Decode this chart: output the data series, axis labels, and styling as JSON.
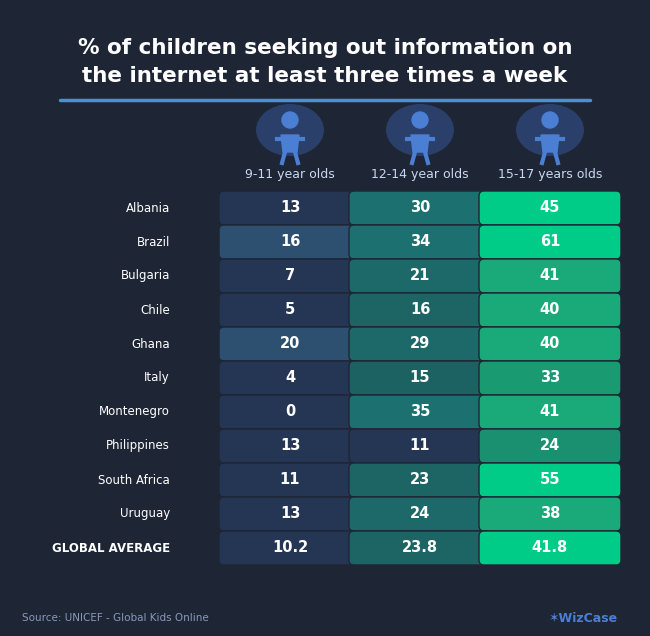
{
  "title": "% of children seeking out information on\nthe internet at least three times a week",
  "bg_color": "#1e2535",
  "col_headers": [
    "9-11 year olds",
    "12-14 year olds",
    "15-17 years olds"
  ],
  "countries": [
    "Albania",
    "Brazil",
    "Bulgaria",
    "Chile",
    "Ghana",
    "Italy",
    "Montenegro",
    "Philippines",
    "South Africa",
    "Uruguay",
    "GLOBAL AVERAGE"
  ],
  "col1": [
    "13",
    "16",
    "7",
    "5",
    "20",
    "4",
    "0",
    "13",
    "11",
    "13",
    "10.2"
  ],
  "col2": [
    "30",
    "34",
    "21",
    "16",
    "29",
    "15",
    "35",
    "11",
    "23",
    "24",
    "23.8"
  ],
  "col3": [
    "45",
    "61",
    "41",
    "40",
    "40",
    "33",
    "41",
    "24",
    "55",
    "38",
    "41.8"
  ],
  "col1_colors": [
    "#253655",
    "#2e5070",
    "#253655",
    "#253655",
    "#2e5070",
    "#253655",
    "#253655",
    "#253655",
    "#253655",
    "#253655",
    "#253655"
  ],
  "col2_colors": [
    "#1d7070",
    "#1d7070",
    "#1d6868",
    "#1d6565",
    "#1d6868",
    "#1d6262",
    "#1d7070",
    "#253655",
    "#1d6565",
    "#1d6868",
    "#1d6565"
  ],
  "col3_colors": [
    "#00cc88",
    "#00cc88",
    "#1aaa7a",
    "#1aaa7a",
    "#1aaa7a",
    "#1a9a70",
    "#1aaa7a",
    "#1a9070",
    "#00cc88",
    "#1aaa7a",
    "#00cc88"
  ],
  "source_text": "Source: UNICEF - Global Kids Online",
  "accent_line_color": "#4a90d9",
  "title_color": "#ffffff",
  "cell_text_color": "#ffffff",
  "country_text_color": "#ffffff",
  "header_text_color": "#c8d8f0",
  "icon_bg_color": "#2a3f6a",
  "icon_color": "#4a7fd4"
}
